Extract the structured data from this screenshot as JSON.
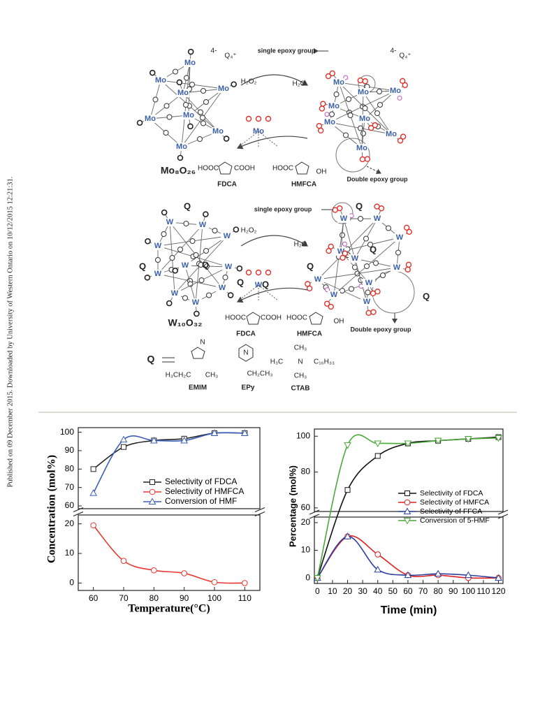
{
  "side_note": "Published on 09 December 2015. Downloaded by University of Western Ontario on 10/12/2015 12:21:31.",
  "diagram": {
    "mo_cluster_atoms": [
      "Mo",
      "Mo",
      "Mo",
      "Mo",
      "Mo",
      "Mo",
      "Mo",
      "Mo"
    ],
    "mo_epoxy_atoms": [
      "Mo",
      "Mo",
      "Mo",
      "Mo",
      "Mo",
      "Mo",
      "Mo",
      "Mo"
    ],
    "mo_center": "Mo",
    "w_cluster_atoms": [
      "W",
      "W",
      "W",
      "W",
      "W",
      "W",
      "W",
      "W",
      "W",
      "W"
    ],
    "w_epoxy_atoms": [
      "W",
      "W",
      "W",
      "W",
      "W",
      "W",
      "W",
      "W",
      "W",
      "W"
    ],
    "w_center": "W",
    "texts": [
      "4-",
      "Q₄⁺",
      "4-",
      "Q₄⁺",
      "H₂O₂",
      "H₂O",
      "single epoxy group",
      "Double epoxy group",
      "Mo₈O₂₆",
      "HOOC",
      "COOH",
      "HOOC",
      "OH",
      "FDCA",
      "HMFCA",
      "H₂O₂",
      "H₂O",
      "single epoxy group",
      "Double epoxy group",
      "W₁₀O₃₂",
      "HOOC",
      "COOH",
      "HOOC",
      "OH",
      "FDCA",
      "HMFCA",
      "Q",
      "Q",
      "Q",
      "Q",
      "Q",
      "Q",
      "Q",
      "Q",
      "Q",
      "Q",
      "N",
      "H₃CH₂C",
      "CH₃",
      "EMIM",
      "N",
      "CH₂CH₃",
      "EPy",
      "CH₃",
      "H₃C",
      "N",
      "C₁₆H₃₃",
      "CH₃",
      "CTAB"
    ]
  },
  "chart_data": [
    {
      "type": "line",
      "xlabel": "Temperature(°C)",
      "ylabel": "Concentration (mol%)",
      "x": [
        60,
        70,
        80,
        90,
        100,
        110
      ],
      "xlim": [
        55,
        115
      ],
      "xticks": [
        60,
        70,
        80,
        90,
        100,
        110
      ],
      "ylim_lower": [
        -2.5,
        23
      ],
      "ylim_upper": [
        58.5,
        102.5
      ],
      "yticks": [
        0,
        10,
        20,
        60,
        70,
        80,
        90,
        100
      ],
      "axis_break": true,
      "series": [
        {
          "name": "Selectivity of FDCA",
          "color": "#222222",
          "marker": "square",
          "values": [
            80,
            92,
            95.5,
            96.5,
            99.5,
            99.5
          ]
        },
        {
          "name": "Selectivity of HMFCA",
          "color": "#e8382f",
          "marker": "circle",
          "values": [
            19.5,
            7.5,
            4.3,
            3.3,
            0.3,
            0
          ]
        },
        {
          "name": "Conversion of HMF",
          "color": "#3b5fb8",
          "marker": "triangle",
          "values": [
            67,
            96,
            95.5,
            95.5,
            99.5,
            99.5
          ]
        }
      ]
    },
    {
      "type": "line",
      "xlabel": "Time (min)",
      "ylabel": "Percentage (mol%)",
      "x": [
        0,
        20,
        40,
        60,
        80,
        100,
        120
      ],
      "xlim": [
        -2,
        123
      ],
      "xticks": [
        0,
        10,
        20,
        30,
        40,
        50,
        60,
        70,
        80,
        90,
        100,
        110,
        120
      ],
      "ylim_lower": [
        -2,
        22
      ],
      "ylim_upper": [
        58,
        104
      ],
      "yticks": [
        0,
        10,
        20,
        60,
        80,
        100
      ],
      "axis_break": true,
      "series": [
        {
          "name": "Selectivity of FDCA",
          "color": "#111111",
          "marker": "square",
          "values": [
            0,
            70,
            89,
            96,
            97.5,
            98.5,
            99.5
          ]
        },
        {
          "name": "Selectivity of HMFCA",
          "color": "#e02020",
          "marker": "circle",
          "values": [
            0,
            15,
            8.5,
            1,
            1,
            0,
            0
          ]
        },
        {
          "name": "Selectivity of FFCA",
          "color": "#2a3fa0",
          "marker": "triangle",
          "values": [
            0,
            15,
            3,
            1,
            1.5,
            1,
            0
          ]
        },
        {
          "name": "Conversion of 5-HMF",
          "color": "#4aa83a",
          "marker": "triangle-down",
          "values": [
            0,
            95,
            96,
            96,
            97.5,
            98.5,
            99
          ]
        }
      ]
    }
  ]
}
